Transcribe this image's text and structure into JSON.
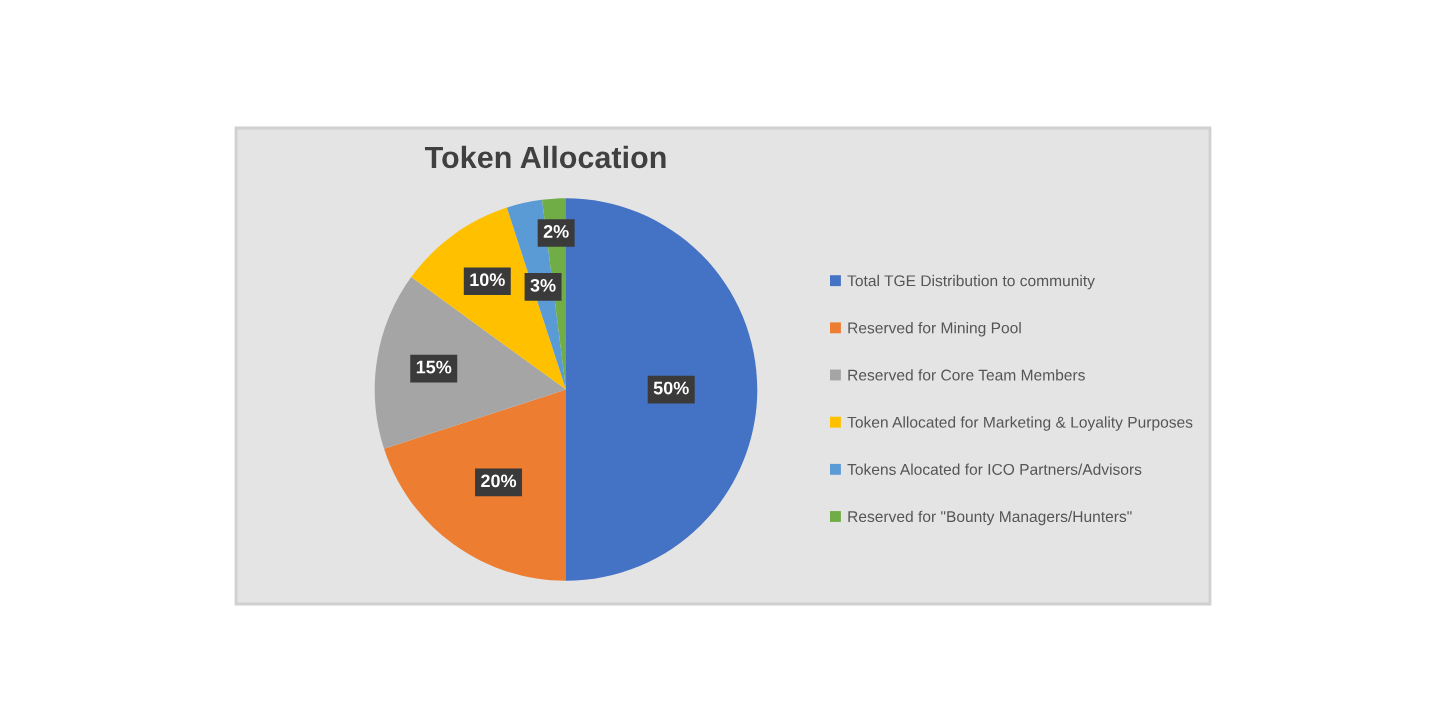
{
  "chart_data": {
    "type": "pie",
    "title": "Token Allocation",
    "categories": [
      "Total TGE Distribution to community",
      "Reserved for Mining Pool",
      "Reserved for Core Team Members",
      "Token Allocated for Marketing & Loyality Purposes",
      "Tokens Alocated for ICO Partners/Advisors",
      "Reserved for \"Bounty Managers/Hunters\""
    ],
    "values": [
      50,
      20,
      15,
      10,
      3,
      2
    ],
    "colors": [
      "#4472c4",
      "#ed7d31",
      "#a5a5a5",
      "#ffc000",
      "#5b9bd5",
      "#70ad47"
    ],
    "value_labels": [
      "50%",
      "20%",
      "15%",
      "10%",
      "3%",
      "2%"
    ],
    "legend": "right"
  }
}
